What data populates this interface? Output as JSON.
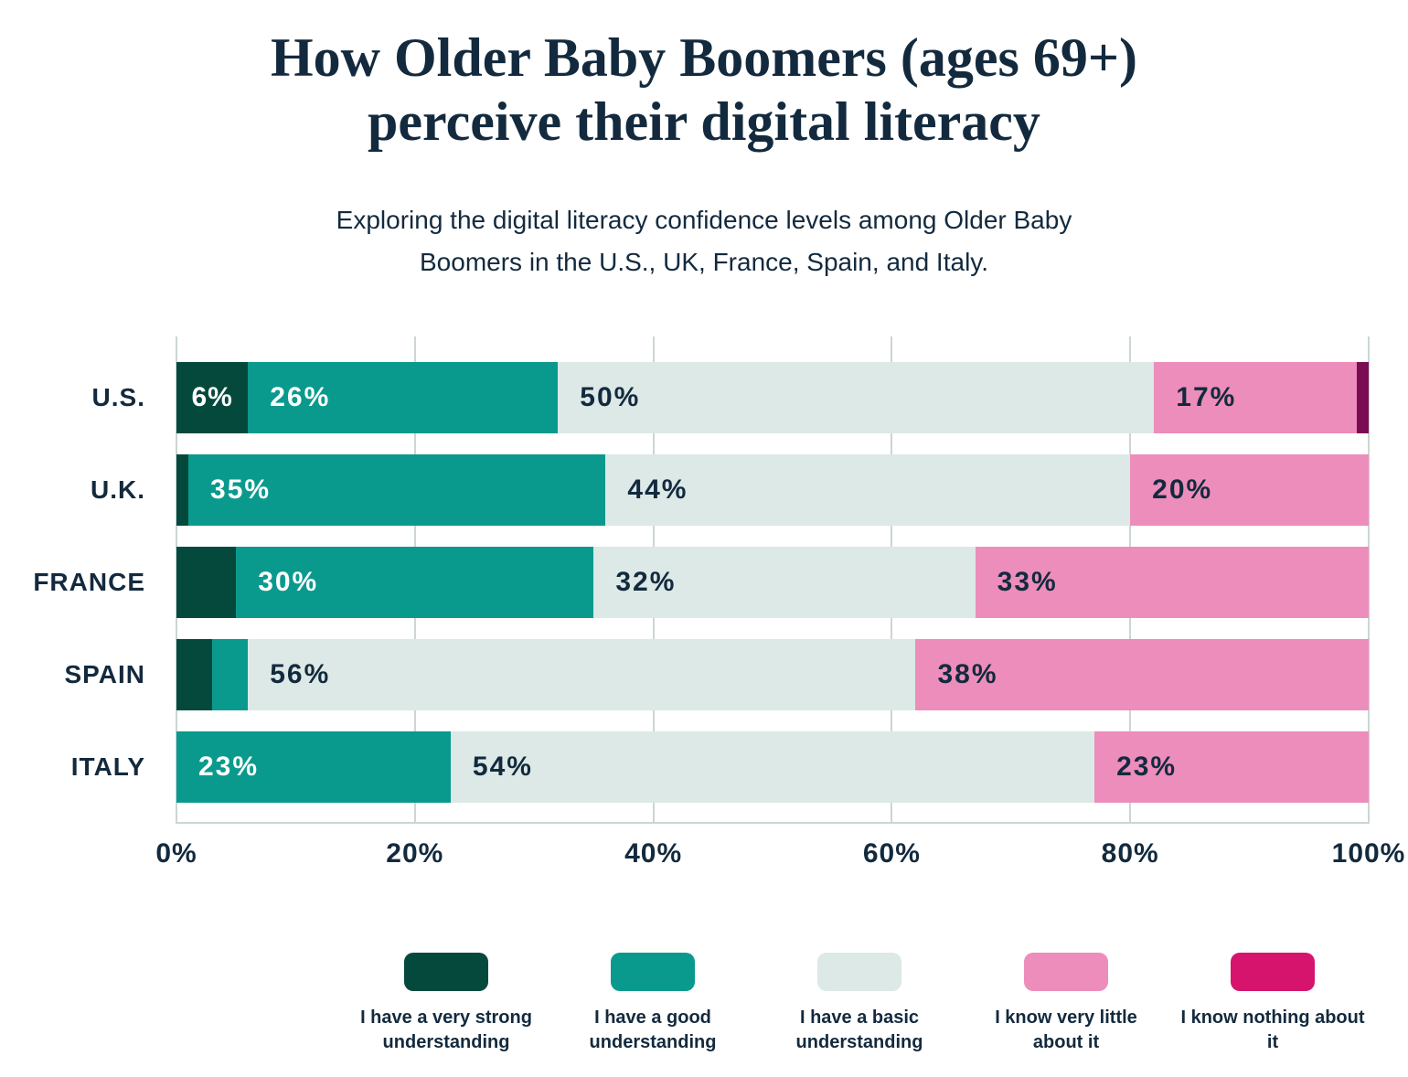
{
  "title": {
    "line1": "How Older Baby Boomers (ages 69+)",
    "line2": "perceive their digital literacy"
  },
  "subtitle": {
    "line1": "Exploring the digital literacy confidence levels among Older Baby",
    "line2": "Boomers in the U.S., UK, France, Spain, and Italy."
  },
  "colors": {
    "text_navy": "#132a3e",
    "background": "#ffffff",
    "gridline": "#ccd6d4",
    "very_strong_green": "#05493d",
    "good_teal": "#0a9a8d",
    "basic_mint": "#dce9e6",
    "very_little_pink": "#ed8dbb",
    "nothing_magenta_legend": "#d6146e",
    "nothing_maroon_bar": "#7a0d52"
  },
  "chart_data": {
    "type": "bar",
    "orientation": "horizontal",
    "stacked": true,
    "title": "How Older Baby Boomers (ages 69+) perceive their digital literacy",
    "subtitle": "Exploring the digital literacy confidence levels among Older Baby Boomers in the U.S., UK, France, Spain, and Italy.",
    "categories": [
      "U.S.",
      "U.K.",
      "FRANCE",
      "SPAIN",
      "ITALY"
    ],
    "series": [
      {
        "name": "I have a very strong understanding",
        "color": "#05493d",
        "label_color": "#ffffff",
        "values": [
          6,
          1,
          5,
          3,
          0
        ]
      },
      {
        "name": "I have a good understanding",
        "color": "#0a9a8d",
        "label_color": "#ffffff",
        "values": [
          26,
          35,
          30,
          3,
          23
        ]
      },
      {
        "name": "I have a basic understanding",
        "color": "#dce9e6",
        "label_color": "#132a3e",
        "values": [
          50,
          44,
          32,
          56,
          54
        ]
      },
      {
        "name": "I know very little about it",
        "color": "#ed8dbb",
        "label_color": "#132a3e",
        "values": [
          17,
          20,
          33,
          38,
          23
        ]
      },
      {
        "name": "I know nothing about it",
        "color": "#d6146e",
        "bar_color": "#7a0d52",
        "label_color": "#ffffff",
        "values": [
          1,
          0,
          0,
          0,
          0
        ]
      }
    ],
    "segment_labels": [
      [
        "6%",
        "26%",
        "50%",
        "17%",
        null
      ],
      [
        null,
        "35%",
        "44%",
        "20%",
        null
      ],
      [
        null,
        "30%",
        "32%",
        "33%",
        null
      ],
      [
        null,
        null,
        "56%",
        "38%",
        null
      ],
      [
        null,
        "23%",
        "54%",
        "23%",
        null
      ]
    ],
    "x_ticks": [
      "0%",
      "20%",
      "40%",
      "60%",
      "80%",
      "100%"
    ],
    "xlim": [
      0,
      100
    ],
    "grid": "vertical",
    "legend_position": "bottom"
  }
}
